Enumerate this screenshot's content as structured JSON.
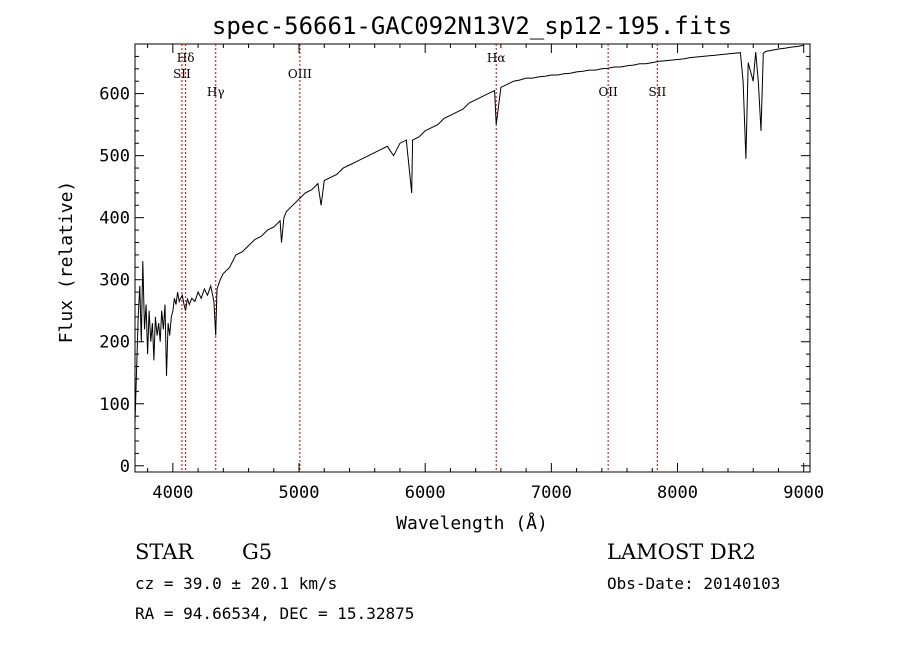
{
  "chart_data": {
    "type": "line",
    "title": "spec-56661-GAC092N13V2_sp12-195.fits",
    "xlabel": "Wavelength (Å)",
    "ylabel": "Flux (relative)",
    "xlim": [
      3700,
      9050
    ],
    "ylim": [
      -10,
      680
    ],
    "x_ticks": [
      4000,
      5000,
      6000,
      7000,
      8000,
      9000
    ],
    "y_ticks": [
      0,
      100,
      200,
      300,
      400,
      500,
      600
    ],
    "line_color": "#000000",
    "marker_color": "#cc0000",
    "series": [
      {
        "x": [
          3700,
          3712,
          3725,
          3738,
          3750,
          3762,
          3775,
          3788,
          3800,
          3812,
          3825,
          3838,
          3850,
          3862,
          3875,
          3888,
          3900,
          3912,
          3925,
          3938,
          3950,
          3962,
          3975,
          3988,
          4000,
          4012,
          4025,
          4038,
          4050,
          4062,
          4075,
          4088,
          4101,
          4115,
          4130,
          4150,
          4175,
          4200,
          4225,
          4250,
          4275,
          4300,
          4325,
          4340,
          4350,
          4375,
          4400,
          4450,
          4500,
          4550,
          4600,
          4650,
          4700,
          4750,
          4800,
          4850,
          4861,
          4880,
          4900,
          4950,
          5000,
          5050,
          5100,
          5150,
          5175,
          5200,
          5250,
          5300,
          5350,
          5400,
          5450,
          5500,
          5550,
          5600,
          5650,
          5700,
          5750,
          5800,
          5850,
          5893,
          5900,
          5950,
          6000,
          6050,
          6100,
          6150,
          6200,
          6250,
          6300,
          6350,
          6400,
          6450,
          6500,
          6550,
          6563,
          6600,
          6650,
          6700,
          6750,
          6800,
          6850,
          6900,
          6950,
          7000,
          7050,
          7100,
          7150,
          7200,
          7250,
          7300,
          7350,
          7400,
          7450,
          7500,
          7550,
          7600,
          7650,
          7700,
          7750,
          7800,
          7850,
          7900,
          7950,
          8000,
          8050,
          8100,
          8150,
          8200,
          8250,
          8300,
          8350,
          8400,
          8450,
          8498,
          8520,
          8542,
          8560,
          8600,
          8620,
          8640,
          8662,
          8680,
          8700,
          8750,
          8800,
          8850,
          8900,
          8950,
          9000
        ],
        "y": [
          70,
          150,
          240,
          290,
          200,
          330,
          220,
          260,
          180,
          250,
          200,
          230,
          170,
          240,
          210,
          230,
          200,
          250,
          220,
          260,
          145,
          230,
          210,
          240,
          250,
          270,
          260,
          280,
          265,
          270,
          275,
          260,
          250,
          270,
          260,
          270,
          265,
          280,
          270,
          285,
          275,
          290,
          265,
          210,
          285,
          300,
          310,
          320,
          340,
          345,
          355,
          365,
          370,
          380,
          385,
          395,
          360,
          400,
          410,
          420,
          430,
          440,
          445,
          455,
          420,
          460,
          465,
          470,
          480,
          485,
          490,
          495,
          500,
          505,
          510,
          515,
          500,
          520,
          525,
          440,
          525,
          530,
          540,
          545,
          550,
          560,
          565,
          570,
          575,
          585,
          590,
          595,
          600,
          605,
          550,
          610,
          615,
          620,
          622,
          625,
          625,
          627,
          628,
          630,
          630,
          632,
          633,
          635,
          636,
          638,
          638,
          640,
          641,
          643,
          643,
          645,
          646,
          648,
          648,
          650,
          652,
          653,
          654,
          655,
          656,
          658,
          659,
          660,
          661,
          662,
          663,
          664,
          665,
          666,
          620,
          495,
          650,
          620,
          667,
          620,
          540,
          665,
          668,
          670,
          672,
          673,
          675,
          676,
          678
        ]
      }
    ],
    "line_markers": [
      {
        "label": "Hδ",
        "x": 4101,
        "row": 0
      },
      {
        "label": "SII",
        "x": 4072,
        "row": 1
      },
      {
        "label": "Hγ",
        "x": 4340,
        "row": 2
      },
      {
        "label": "OIII",
        "x": 5007,
        "row": 1
      },
      {
        "label": "Hα",
        "x": 6563,
        "row": 0
      },
      {
        "label": "OII",
        "x": 7450,
        "row": 2
      },
      {
        "label": "SII",
        "x": 7840,
        "row": 2
      }
    ]
  },
  "footer": {
    "object_class": "STAR",
    "subclass": "G5",
    "survey": "LAMOST DR2",
    "cz": "cz = 39.0 ± 20.1 km/s",
    "obs_date": "Obs-Date: 20140103",
    "coords": "RA =  94.66534, DEC =  15.32875"
  }
}
